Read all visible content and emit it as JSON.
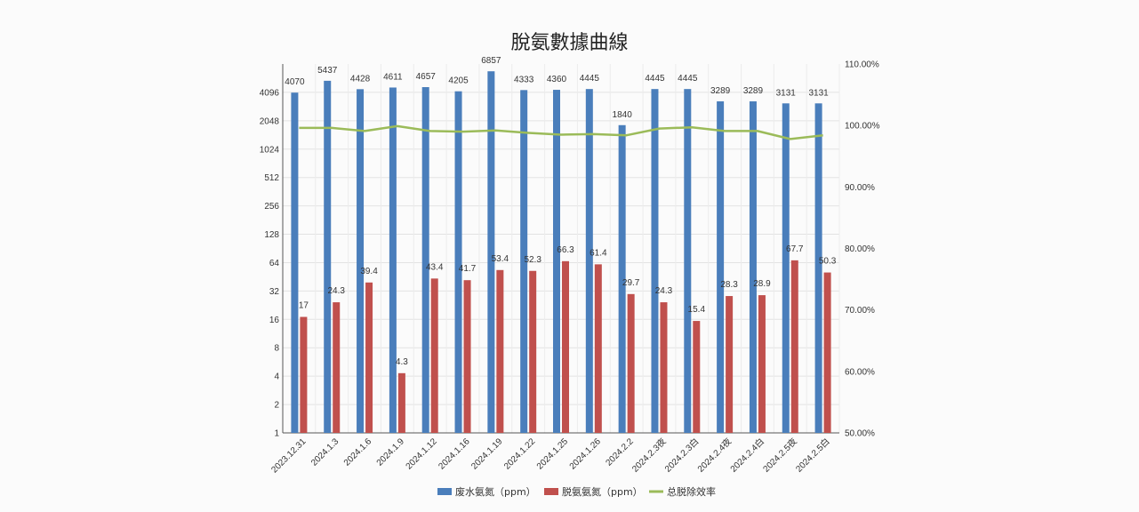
{
  "chart_data": {
    "type": "bar",
    "title": "脫氨數據曲線",
    "categories": [
      "2023.12.31",
      "2024.1.3",
      "2024.1.6",
      "2024.1.9",
      "2024.1.12",
      "2024.1.16",
      "2024.1.19",
      "2024.1.22",
      "2024.1.25",
      "2024.1.26",
      "2024.2.2",
      "2024.2.3夜",
      "2024.2.3白",
      "2024.2.4夜",
      "2024.2.4白",
      "2024.2.5夜",
      "2024.2.5白"
    ],
    "series": [
      {
        "name": "废水氨氮（ppm）",
        "type": "bar",
        "axis": "left",
        "color": "#4a7ebb",
        "values": [
          4070,
          5437,
          4428,
          4611,
          4657,
          4205,
          6857,
          4333,
          4360,
          4445,
          1840,
          4445,
          4445,
          3289,
          3289,
          3131,
          3131
        ],
        "labels": [
          "4070",
          "5437",
          "4428",
          "4611",
          "4657",
          "4205",
          "6857",
          "4333",
          "4360",
          "4445",
          "1840",
          "4445",
          "4445",
          "3289",
          "3289",
          "3131",
          "3131"
        ]
      },
      {
        "name": "脱氨氨氮（ppm）",
        "type": "bar",
        "axis": "left",
        "color": "#c0504d",
        "values": [
          17,
          24.3,
          39.4,
          4.3,
          43.4,
          41.7,
          53.4,
          52.3,
          66.3,
          61.4,
          29.7,
          24.3,
          15.4,
          28.3,
          28.9,
          67.7,
          50.3
        ],
        "labels": [
          "17",
          "24.3",
          "39.4",
          "4.3",
          "43.4",
          "41.7",
          "53.4",
          "52.3",
          "66.3",
          "61.4",
          "29.7",
          "24.3",
          "15.4",
          "28.3",
          "28.9",
          "67.7",
          "50.3"
        ]
      },
      {
        "name": "总脱除效率",
        "type": "line",
        "axis": "right",
        "color": "#9bbb59",
        "values": [
          99.6,
          99.6,
          99.1,
          99.9,
          99.1,
          99.0,
          99.2,
          98.8,
          98.5,
          98.6,
          98.4,
          99.5,
          99.7,
          99.1,
          99.1,
          97.8,
          98.4
        ]
      }
    ],
    "y_left": {
      "scale": "log2",
      "ylim": [
        1,
        8192
      ],
      "ticks": [
        "1",
        "2",
        "4",
        "8",
        "16",
        "32",
        "64",
        "128",
        "256",
        "512",
        "1024",
        "2048",
        "4096"
      ]
    },
    "y_right": {
      "ylim": [
        50,
        110
      ],
      "ticks": [
        "50.00%",
        "60.00%",
        "70.00%",
        "80.00%",
        "90.00%",
        "100.00%",
        "110.00%"
      ]
    },
    "grid": true,
    "legend_position": "bottom"
  }
}
